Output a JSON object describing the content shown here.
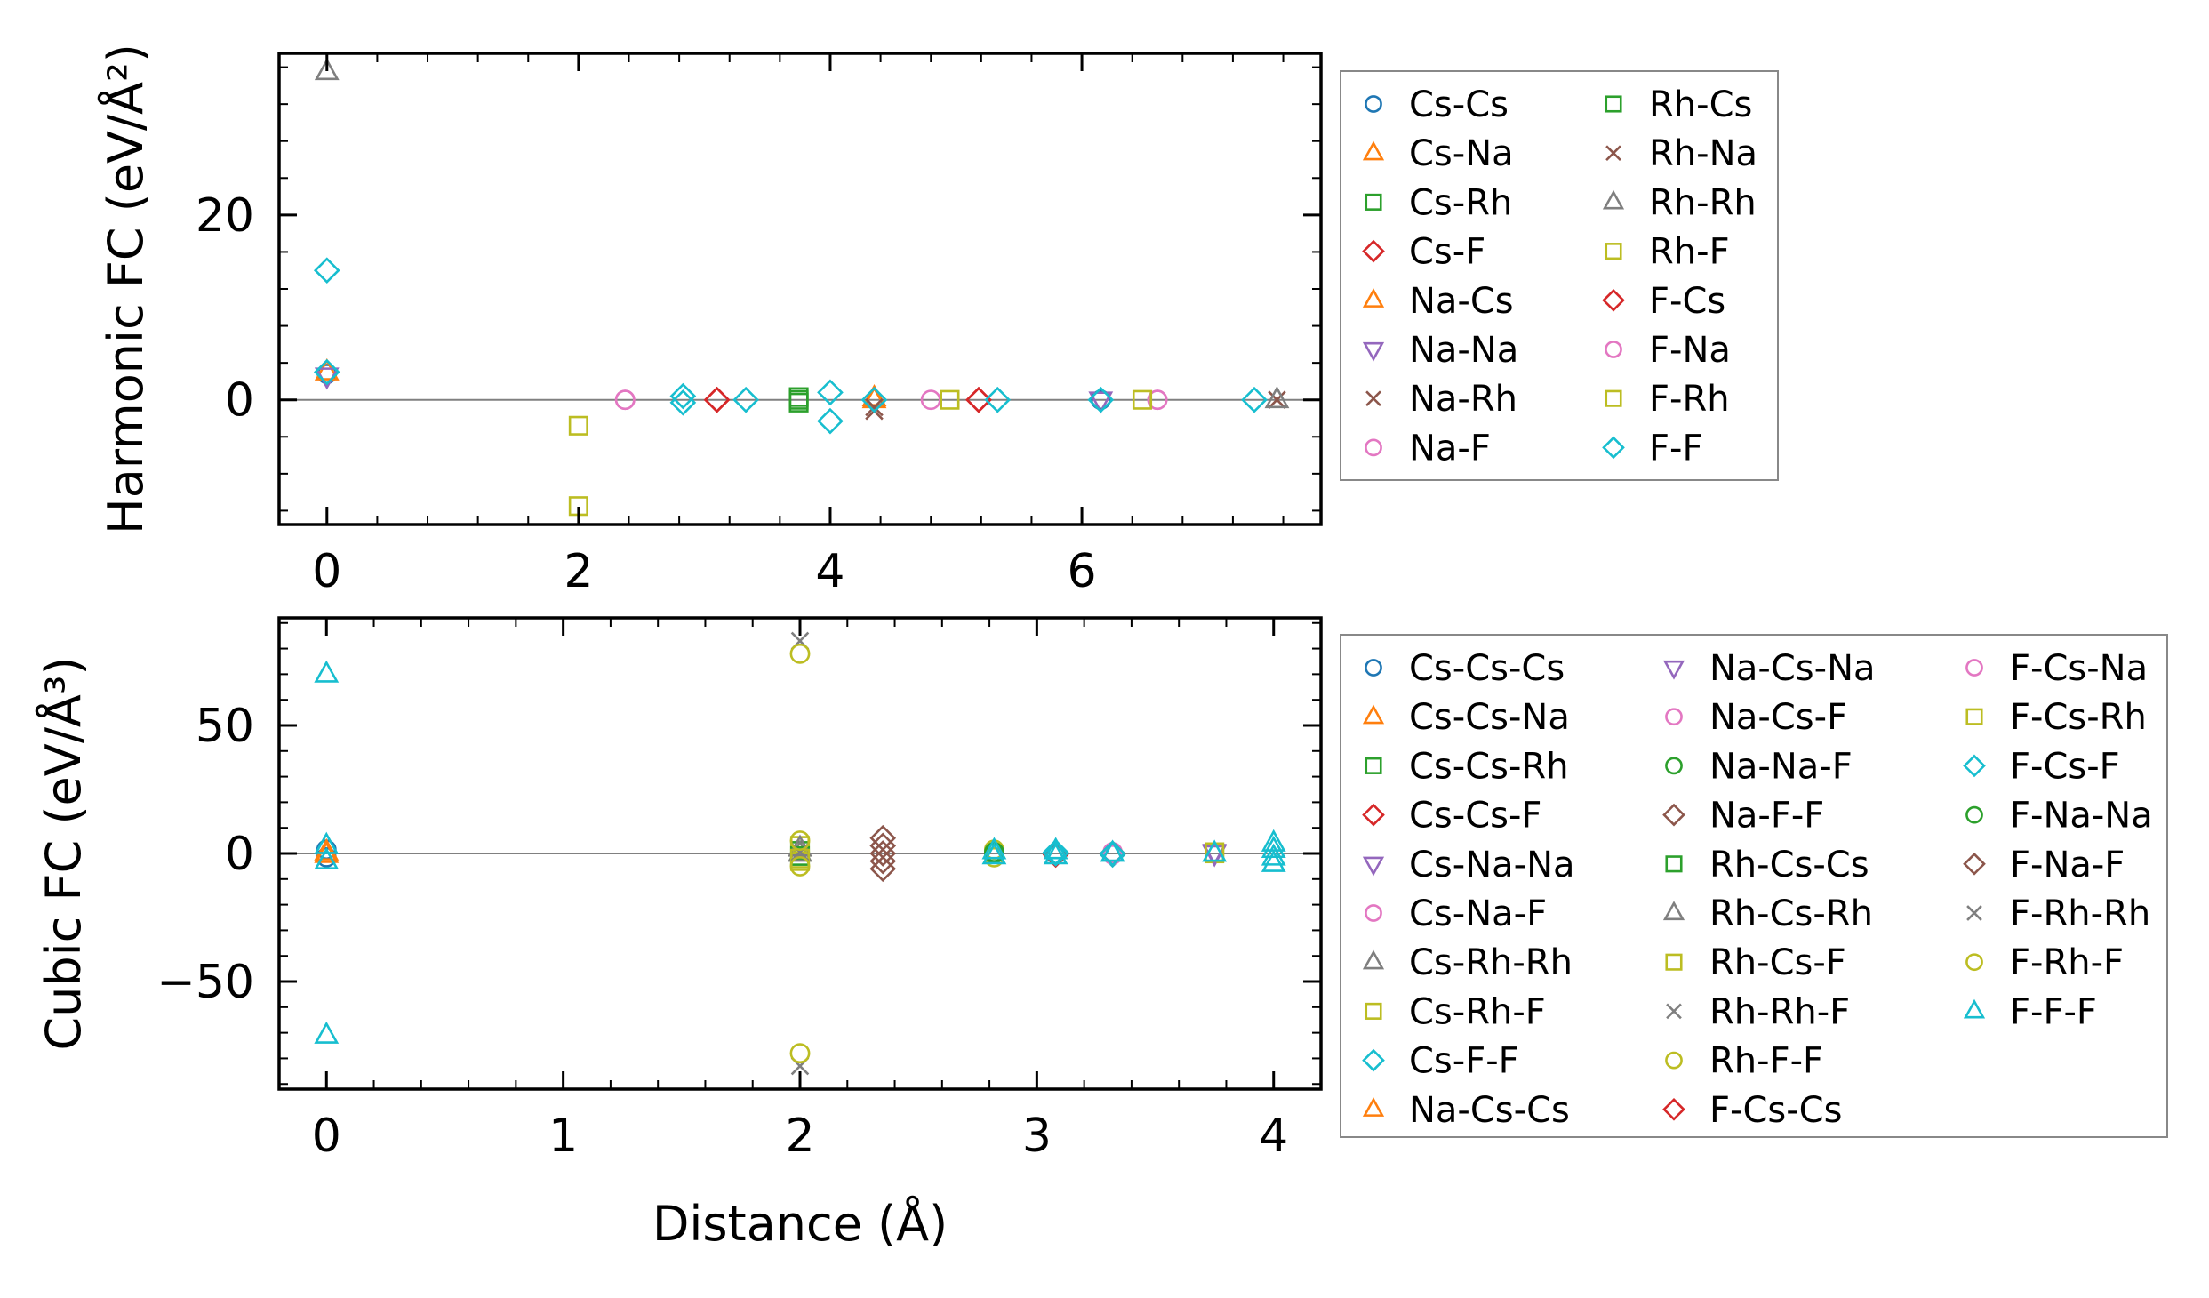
{
  "colors": {
    "C0": "#1f77b4",
    "C1": "#ff7f0e",
    "C2": "#2ca02c",
    "C3": "#d62728",
    "C4": "#9467bd",
    "C5": "#8c564b",
    "C6": "#e377c2",
    "C7": "#7f7f7f",
    "C8": "#bcbd22",
    "C9": "#17becf",
    "zero_line": "#808080",
    "legend_border": "#888888"
  },
  "chart_data": [
    {
      "id": "harmonic",
      "type": "scatter",
      "xlabel": "",
      "ylabel": "Harmonic FC (eV/Å²)",
      "xlim": [
        -0.38,
        7.9
      ],
      "ylim": [
        -13.5,
        37.5
      ],
      "xticks": [
        0,
        2,
        4,
        6
      ],
      "xtick_labels": [
        "0",
        "2",
        "4",
        "6"
      ],
      "yticks": [
        0,
        20
      ],
      "ytick_labels": [
        "0",
        "20"
      ],
      "x_minor_step": 0.4,
      "y_minor_step": 4,
      "legend_ncol": 2,
      "series": [
        {
          "name": "Cs-Cs",
          "marker": "circle",
          "color": "C0",
          "points": [
            [
              0,
              2.8
            ],
            [
              6.15,
              0
            ]
          ]
        },
        {
          "name": "Cs-Na",
          "marker": "triangle-up",
          "color": "C1",
          "points": [
            [
              0,
              3.0
            ],
            [
              4.35,
              0
            ]
          ]
        },
        {
          "name": "Cs-Rh",
          "marker": "square",
          "color": "C2",
          "points": [
            [
              3.75,
              0.3
            ],
            [
              3.75,
              -0.3
            ]
          ]
        },
        {
          "name": "Cs-F",
          "marker": "diamond",
          "color": "C3",
          "points": [
            [
              3.1,
              0
            ],
            [
              5.18,
              0
            ]
          ]
        },
        {
          "name": "Na-Cs",
          "marker": "triangle-up",
          "color": "C1",
          "points": [
            [
              4.35,
              0.2
            ]
          ]
        },
        {
          "name": "Na-Na",
          "marker": "triangle-down",
          "color": "C4",
          "points": [
            [
              0,
              2.6
            ],
            [
              6.15,
              0
            ]
          ]
        },
        {
          "name": "Na-Rh",
          "marker": "x",
          "color": "C5",
          "points": [
            [
              4.35,
              -0.8
            ],
            [
              7.55,
              0
            ]
          ]
        },
        {
          "name": "Na-F",
          "marker": "circle",
          "color": "C6",
          "points": [
            [
              2.37,
              0
            ],
            [
              4.8,
              0
            ],
            [
              6.6,
              0
            ]
          ]
        },
        {
          "name": "Rh-Cs",
          "marker": "square",
          "color": "C2",
          "points": [
            [
              3.75,
              0
            ]
          ]
        },
        {
          "name": "Rh-Na",
          "marker": "x",
          "color": "C5",
          "points": [
            [
              4.35,
              -1.2
            ]
          ]
        },
        {
          "name": "Rh-Rh",
          "marker": "triangle-up",
          "color": "C7",
          "points": [
            [
              0,
              35.5
            ],
            [
              7.55,
              0
            ]
          ]
        },
        {
          "name": "Rh-F",
          "marker": "square",
          "color": "C8",
          "points": [
            [
              2.0,
              -2.8
            ],
            [
              2.0,
              -11.5
            ]
          ]
        },
        {
          "name": "F-Cs",
          "marker": "diamond",
          "color": "C3",
          "points": [
            [
              3.1,
              0
            ],
            [
              5.18,
              0
            ]
          ]
        },
        {
          "name": "F-Na",
          "marker": "circle",
          "color": "C6",
          "points": [
            [
              2.37,
              0
            ],
            [
              6.6,
              0
            ]
          ]
        },
        {
          "name": "F-Rh",
          "marker": "square",
          "color": "C8",
          "points": [
            [
              4.95,
              0
            ],
            [
              6.48,
              0
            ]
          ]
        },
        {
          "name": "F-F",
          "marker": "diamond",
          "color": "C9",
          "points": [
            [
              0,
              14.0
            ],
            [
              0,
              3.0
            ],
            [
              2.83,
              0.4
            ],
            [
              2.83,
              -0.3
            ],
            [
              3.33,
              0
            ],
            [
              4.0,
              0.8
            ],
            [
              4.0,
              -2.3
            ],
            [
              4.35,
              0
            ],
            [
              5.33,
              0
            ],
            [
              6.15,
              0
            ],
            [
              7.37,
              0
            ]
          ]
        }
      ]
    },
    {
      "id": "cubic",
      "type": "scatter",
      "xlabel": "Distance (Å)",
      "ylabel": "Cubic FC (eV/Å³)",
      "xlim": [
        -0.2,
        4.2
      ],
      "ylim": [
        -92,
        92
      ],
      "xticks": [
        0,
        1,
        2,
        3,
        4
      ],
      "xtick_labels": [
        "0",
        "1",
        "2",
        "3",
        "4"
      ],
      "yticks": [
        -50,
        0,
        50
      ],
      "ytick_labels": [
        "−50",
        "0",
        "50"
      ],
      "x_minor_step": 0.2,
      "y_minor_step": 10,
      "legend_ncol": 3,
      "series": [
        {
          "name": "Cs-Cs-Cs",
          "marker": "circle",
          "color": "C0",
          "points": [
            [
              0,
              1.5
            ],
            [
              0,
              -1.5
            ]
          ]
        },
        {
          "name": "Cs-Cs-Na",
          "marker": "triangle-up",
          "color": "C1",
          "points": [
            [
              0,
              0.5
            ]
          ]
        },
        {
          "name": "Cs-Cs-Rh",
          "marker": "square",
          "color": "C2",
          "points": [
            [
              2.0,
              1.0
            ]
          ]
        },
        {
          "name": "Cs-Cs-F",
          "marker": "diamond",
          "color": "C3",
          "points": [
            [
              3.08,
              0
            ]
          ]
        },
        {
          "name": "Cs-Na-Na",
          "marker": "triangle-down",
          "color": "C4",
          "points": [
            [
              3.75,
              0
            ]
          ]
        },
        {
          "name": "Cs-Na-F",
          "marker": "circle",
          "color": "C6",
          "points": [
            [
              3.32,
              0
            ]
          ]
        },
        {
          "name": "Cs-Rh-Rh",
          "marker": "triangle-up",
          "color": "C7",
          "points": [
            [
              2.0,
              0
            ]
          ]
        },
        {
          "name": "Cs-Rh-F",
          "marker": "square",
          "color": "C8",
          "points": [
            [
              2.0,
              3.0
            ],
            [
              2.0,
              -3.0
            ],
            [
              3.75,
              0
            ]
          ]
        },
        {
          "name": "Cs-F-F",
          "marker": "diamond",
          "color": "C9",
          "points": [
            [
              3.08,
              0.5
            ],
            [
              3.32,
              -0.5
            ]
          ]
        },
        {
          "name": "Na-Cs-Cs",
          "marker": "triangle-up",
          "color": "C1",
          "points": [
            [
              0,
              -0.5
            ]
          ]
        },
        {
          "name": "Na-Cs-Na",
          "marker": "triangle-down",
          "color": "C4",
          "points": [
            [
              3.75,
              0.5
            ]
          ]
        },
        {
          "name": "Na-Cs-F",
          "marker": "circle",
          "color": "C6",
          "points": [
            [
              3.32,
              0.5
            ]
          ]
        },
        {
          "name": "Na-Na-F",
          "marker": "circle",
          "color": "C2",
          "points": [
            [
              2.82,
              0
            ]
          ]
        },
        {
          "name": "Na-F-F",
          "marker": "diamond",
          "color": "C5",
          "points": [
            [
              2.35,
              6.0
            ],
            [
              2.35,
              0
            ],
            [
              2.35,
              -6.0
            ],
            [
              3.32,
              0
            ]
          ]
        },
        {
          "name": "Rh-Cs-Cs",
          "marker": "square",
          "color": "C2",
          "points": [
            [
              2.0,
              -1.0
            ]
          ]
        },
        {
          "name": "Rh-Cs-Rh",
          "marker": "triangle-up",
          "color": "C7",
          "points": [
            [
              2.0,
              2.0
            ]
          ]
        },
        {
          "name": "Rh-Cs-F",
          "marker": "square",
          "color": "C8",
          "points": [
            [
              3.75,
              0.5
            ]
          ]
        },
        {
          "name": "Rh-Rh-F",
          "marker": "x",
          "color": "C7",
          "points": [
            [
              2.0,
              83.0
            ],
            [
              2.0,
              -83.0
            ]
          ]
        },
        {
          "name": "Rh-F-F",
          "marker": "circle",
          "color": "C8",
          "points": [
            [
              2.0,
              78.0
            ],
            [
              2.0,
              -78.0
            ],
            [
              2.82,
              1.5
            ],
            [
              2.82,
              -1.5
            ]
          ]
        },
        {
          "name": "F-Cs-Cs",
          "marker": "diamond",
          "color": "C3",
          "points": [
            [
              3.08,
              -0.5
            ]
          ]
        },
        {
          "name": "F-Cs-Na",
          "marker": "circle",
          "color": "C6",
          "points": [
            [
              3.32,
              -0.5
            ]
          ]
        },
        {
          "name": "F-Cs-Rh",
          "marker": "square",
          "color": "C8",
          "points": [
            [
              2.0,
              -2.0
            ]
          ]
        },
        {
          "name": "F-Cs-F",
          "marker": "diamond",
          "color": "C9",
          "points": [
            [
              3.08,
              0
            ],
            [
              3.32,
              0
            ]
          ]
        },
        {
          "name": "F-Na-Na",
          "marker": "circle",
          "color": "C2",
          "points": [
            [
              2.82,
              0.5
            ]
          ]
        },
        {
          "name": "F-Na-F",
          "marker": "diamond",
          "color": "C5",
          "points": [
            [
              2.35,
              3.0
            ],
            [
              2.35,
              -3.0
            ]
          ]
        },
        {
          "name": "F-Rh-Rh",
          "marker": "x",
          "color": "C7",
          "points": [
            [
              2.0,
              0.5
            ]
          ]
        },
        {
          "name": "F-Rh-F",
          "marker": "circle",
          "color": "C8",
          "points": [
            [
              2.0,
              5.0
            ],
            [
              2.0,
              -5.0
            ]
          ]
        },
        {
          "name": "F-F-F",
          "marker": "triangle-up",
          "color": "C9",
          "points": [
            [
              0,
              70.0
            ],
            [
              0,
              3.0
            ],
            [
              0,
              -3.0
            ],
            [
              0,
              -71.0
            ],
            [
              2.82,
              1.0
            ],
            [
              2.82,
              -1.0
            ],
            [
              3.08,
              1.0
            ],
            [
              3.08,
              -1.0
            ],
            [
              3.32,
              0
            ],
            [
              3.75,
              0
            ],
            [
              4.0,
              4.0
            ],
            [
              4.0,
              1.5
            ],
            [
              4.0,
              -1.5
            ],
            [
              4.0,
              -4.0
            ]
          ]
        }
      ]
    }
  ]
}
